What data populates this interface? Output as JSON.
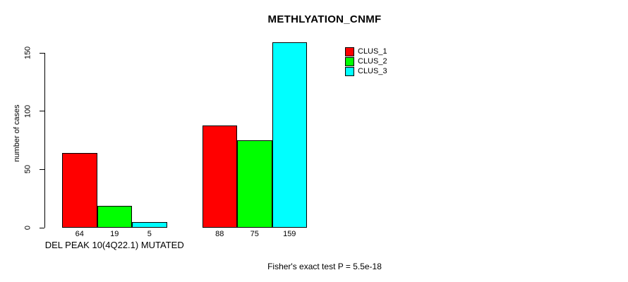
{
  "chart_data": {
    "type": "bar",
    "title": "METHLYATION_CNMF",
    "ylabel": "number of cases",
    "xlabel": "",
    "ylim": [
      0,
      150
    ],
    "yticks": [
      0,
      50,
      100,
      150
    ],
    "grid": false,
    "legend_position": "top-right",
    "series": [
      {
        "name": "CLUS_1",
        "color": "#ff0000"
      },
      {
        "name": "CLUS_2",
        "color": "#00ff00"
      },
      {
        "name": "CLUS_3",
        "color": "#00ffff"
      }
    ],
    "groups": [
      {
        "label": "DEL PEAK 10(4Q22.1) MUTATED",
        "values": [
          64,
          19,
          5
        ]
      },
      {
        "label": "",
        "values": [
          88,
          75,
          159
        ]
      }
    ],
    "annotation": "Fisher's exact test P = 5.5e-18",
    "bar_border_color": "#000000",
    "background_color": "#ffffff"
  }
}
